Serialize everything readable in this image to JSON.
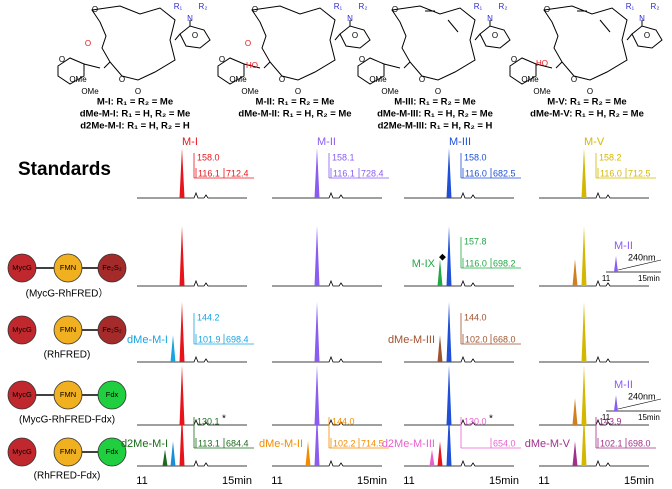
{
  "compounds": [
    {
      "atoms": [
        "O",
        "O",
        "O",
        "O",
        "OMe",
        "OMe",
        "O",
        "R₁",
        "N",
        "R₂"
      ],
      "extra_atoms": [
        "O"
      ],
      "labels": [
        "M-I: R₁ = R₂ = Me",
        "dMe-M-I: R₁ = H, R₂ = Me",
        "d2Me-M-I: R₁ = H, R₂ = H"
      ]
    },
    {
      "atoms": [
        "O",
        "O",
        "O",
        "O",
        "OMe",
        "OMe",
        "O",
        "R₁",
        "N",
        "R₂"
      ],
      "extra_atoms": [
        "O",
        "HO"
      ],
      "labels": [
        "M-II: R₁ = R₂ = Me",
        "dMe-M-II: R₁ = H, R₂ = Me"
      ]
    },
    {
      "atoms": [
        "O",
        "O",
        "O",
        "O",
        "OMe",
        "OMe",
        "O",
        "R₁",
        "N",
        "R₂"
      ],
      "extra_atoms": [],
      "labels": [
        "M-III: R₁ = R₂ = Me",
        "dMe-M-III: R₁ = H, R₂ = Me",
        "d2Me-M-III: R₁ = H, R₂ = H"
      ]
    },
    {
      "atoms": [
        "O",
        "O",
        "O",
        "O",
        "OMe",
        "OMe",
        "O",
        "R₁",
        "N",
        "R₂"
      ],
      "extra_atoms": [
        "HO"
      ],
      "labels": [
        "M-V: R₁ = R₂ = Me",
        "dMe-M-V: R₁ = H, R₂ = Me"
      ]
    }
  ],
  "rows": [
    {
      "label": "Standards"
    },
    {
      "enzymes": [
        "MycG",
        "FMN",
        "Fe₂S₂"
      ],
      "caption": "(MycG-RhFRED）"
    },
    {
      "enzymes": [
        "MycG",
        "FMN",
        "Fe₂S₂"
      ],
      "caption": "(RhFRED)"
    },
    {
      "enzymes": [
        "MycG",
        "FMN",
        "Fdx"
      ],
      "caption": "(MycG-RhFRED-Fdx)"
    },
    {
      "enzymes": [
        "MycG",
        "FMN",
        "Fdx"
      ],
      "caption": "(RhFRED-Fdx)"
    }
  ],
  "axis": {
    "start": "11",
    "end": "15min"
  },
  "panels": [
    [
      {
        "colors": [
          "#e8141b"
        ],
        "label": {
          "name": "M-I",
          "color": "#e8141b",
          "masses": [
            "158.0",
            "116.1",
            "712.4"
          ]
        }
      },
      {
        "colors": [
          "#8a5cf0"
        ],
        "label": {
          "name": "M-II",
          "color": "#8a5cf0",
          "masses": [
            "158.1",
            "116.1",
            "728.4"
          ]
        }
      },
      {
        "colors": [
          "#1f4fd6"
        ],
        "label": {
          "name": "M-III",
          "color": "#1f4fd6",
          "masses": [
            "158.0",
            "116.0",
            "682.5"
          ]
        }
      },
      {
        "colors": [
          "#d4b800"
        ],
        "label": {
          "name": "M-V",
          "color": "#d4b800",
          "masses": [
            "158.2",
            "116.0",
            "712.5"
          ]
        }
      }
    ],
    [
      {
        "colors": [
          "#e8141b"
        ]
      },
      {
        "colors": [
          "#8a5cf0"
        ]
      },
      {
        "colors": [
          "#1f4fd6",
          "#22a845"
        ],
        "label": {
          "name": "M-IX",
          "name_note": "◆",
          "color": "#22a845",
          "masses": [
            "157.8",
            "116.0",
            "698.2"
          ]
        }
      },
      {
        "colors": [
          "#d4b800",
          "#d08020"
        ],
        "inset": {
          "name": "M-II",
          "color": "#8a5cf0",
          "wavelength": "240nm"
        }
      }
    ],
    [
      {
        "colors": [
          "#e8141b",
          "#19a4e0"
        ],
        "label": {
          "name": "dMe-M-I",
          "color": "#19a4e0",
          "masses": [
            "144.2",
            "101.9",
            "698.4"
          ]
        }
      },
      {
        "colors": [
          "#8a5cf0"
        ]
      },
      {
        "colors": [
          "#1f4fd6",
          "#a0522d"
        ],
        "label": {
          "name": "dMe-M-III",
          "color": "#a0522d",
          "masses": [
            "144.0",
            "102.0",
            "668.0"
          ]
        }
      },
      {
        "colors": [
          "#d4b800"
        ]
      }
    ],
    [
      {
        "colors": [
          "#e8141b"
        ]
      },
      {
        "colors": [
          "#8a5cf0"
        ]
      },
      {
        "colors": [
          "#1f4fd6"
        ]
      },
      {
        "colors": [
          "#d4b800",
          "#d08020"
        ],
        "inset": {
          "name": "M-II",
          "color": "#8a5cf0",
          "wavelength": "240nm"
        }
      }
    ],
    [
      {
        "colors": [
          "#e8141b",
          "#1a8fd6",
          "#1a6b1a"
        ],
        "label": {
          "name": "d2Me-M-I",
          "color": "#1a6b1a",
          "masses": [
            "130.1",
            "113.1",
            "684.4"
          ],
          "mass_note": "*"
        }
      },
      {
        "colors": [
          "#8a5cf0",
          "#f08c00"
        ],
        "label": {
          "name": "dMe-M-II",
          "color": "#f08c00",
          "masses": [
            "144.0",
            "102.2",
            "714.5"
          ]
        }
      },
      {
        "colors": [
          "#1f4fd6",
          "#e8141b",
          "#e860d0"
        ],
        "label": {
          "name": "d2Me-M-III",
          "color": "#e860d0",
          "masses": [
            "130.0",
            "654.0"
          ],
          "mass_note": "*"
        }
      },
      {
        "colors": [
          "#d4b800",
          "#a0308a"
        ],
        "label": {
          "name": "dMe-M-V",
          "color": "#a0308a",
          "masses": [
            "143.9",
            "102.1",
            "698.0"
          ]
        }
      }
    ]
  ]
}
